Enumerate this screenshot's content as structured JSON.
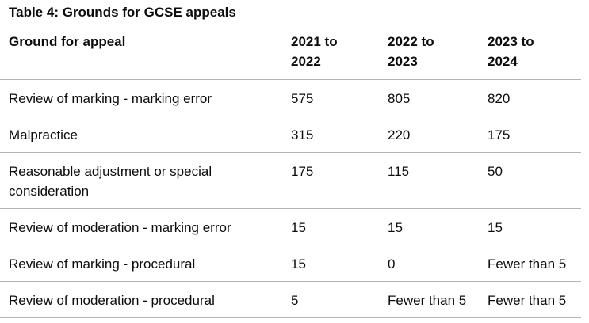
{
  "table": {
    "caption": "Table 4: Grounds for GCSE appeals",
    "headers": [
      "Ground for appeal",
      "2021 to 2022",
      "2022 to 2023",
      "2023 to 2024"
    ],
    "header_lines": [
      [
        "Ground for appeal"
      ],
      [
        "2021 to",
        "2022"
      ],
      [
        "2022 to",
        "2023"
      ],
      [
        "2023 to",
        "2024"
      ]
    ],
    "rows": [
      {
        "ground": "Review of marking - marking error",
        "y2021": "575",
        "y2022": "805",
        "y2023": "820"
      },
      {
        "ground": "Malpractice",
        "y2021": "315",
        "y2022": "220",
        "y2023": "175"
      },
      {
        "ground": "Reasonable adjustment or special consideration",
        "ground_lines": [
          "Reasonable adjustment or special",
          "consideration"
        ],
        "y2021": "175",
        "y2022": "115",
        "y2023": "50"
      },
      {
        "ground": "Review of moderation - marking error",
        "y2021": "15",
        "y2022": "15",
        "y2023": "15"
      },
      {
        "ground": "Review of marking - procedural",
        "y2021": "15",
        "y2022": "0",
        "y2023": "Fewer than 5"
      },
      {
        "ground": "Review of moderation - procedural",
        "y2021": "5",
        "y2022": "Fewer than 5",
        "y2023": "Fewer than 5"
      }
    ]
  }
}
